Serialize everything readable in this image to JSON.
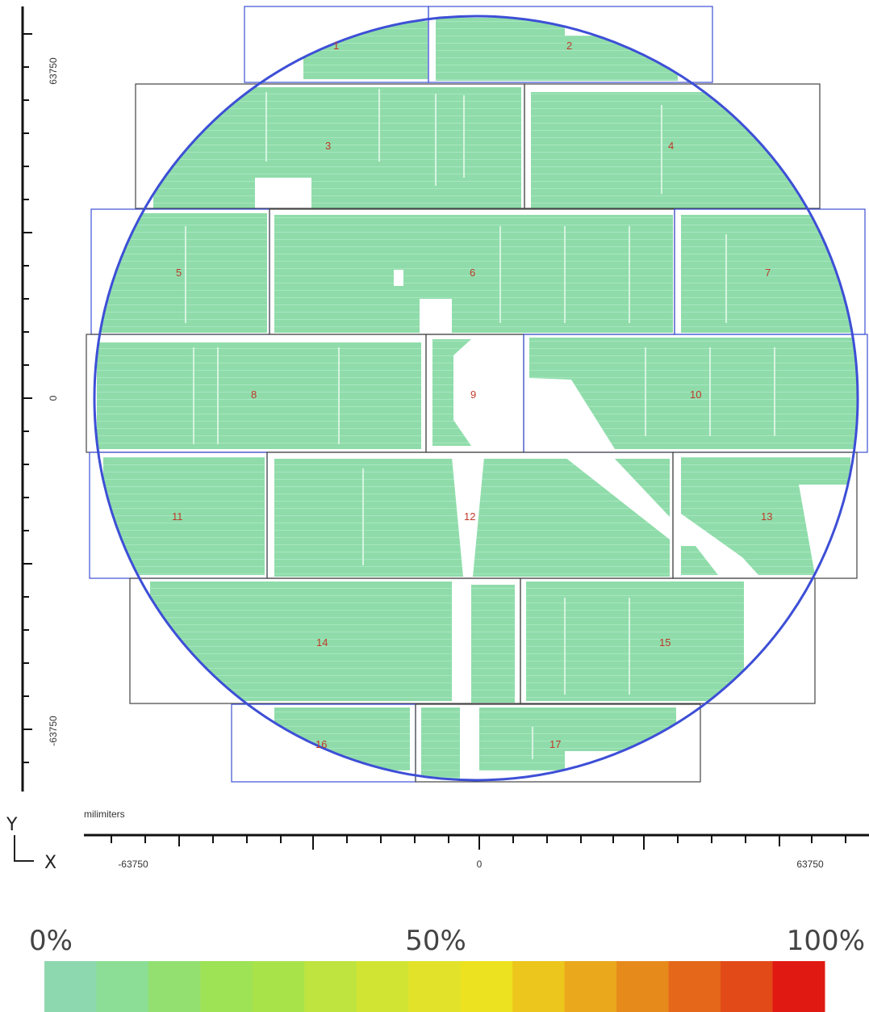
{
  "units_label": "milimiters",
  "axis_letters": {
    "y": "Y",
    "x": "X"
  },
  "x_axis_ticks": [
    "-63750",
    "0",
    "63750"
  ],
  "y_axis_ticks": [
    "63750",
    "0",
    "-63750"
  ],
  "legend": {
    "labels": [
      "0%",
      "50%",
      "100%"
    ],
    "colors": [
      "#8ed8b0",
      "#8cdd95",
      "#93e070",
      "#9ee255",
      "#a9e34a",
      "#bfe43f",
      "#d2e433",
      "#e2e22a",
      "#ece21f",
      "#ecc61c",
      "#eaa81c",
      "#e78a1c",
      "#e4671a",
      "#e24a18",
      "#e01a12"
    ]
  },
  "fields": [
    {
      "number": "1"
    },
    {
      "number": "2"
    },
    {
      "number": "3"
    },
    {
      "number": "4"
    },
    {
      "number": "5"
    },
    {
      "number": "6"
    },
    {
      "number": "7"
    },
    {
      "number": "8"
    },
    {
      "number": "9"
    },
    {
      "number": "10"
    },
    {
      "number": "11"
    },
    {
      "number": "12"
    },
    {
      "number": "13"
    },
    {
      "number": "14"
    },
    {
      "number": "15"
    },
    {
      "number": "16"
    },
    {
      "number": "17"
    }
  ],
  "colors": {
    "wafer_outline": "#3d4fd6",
    "die_fill": "#8fdcaa",
    "field_border": "#444444",
    "field_number": "#c0392b"
  }
}
